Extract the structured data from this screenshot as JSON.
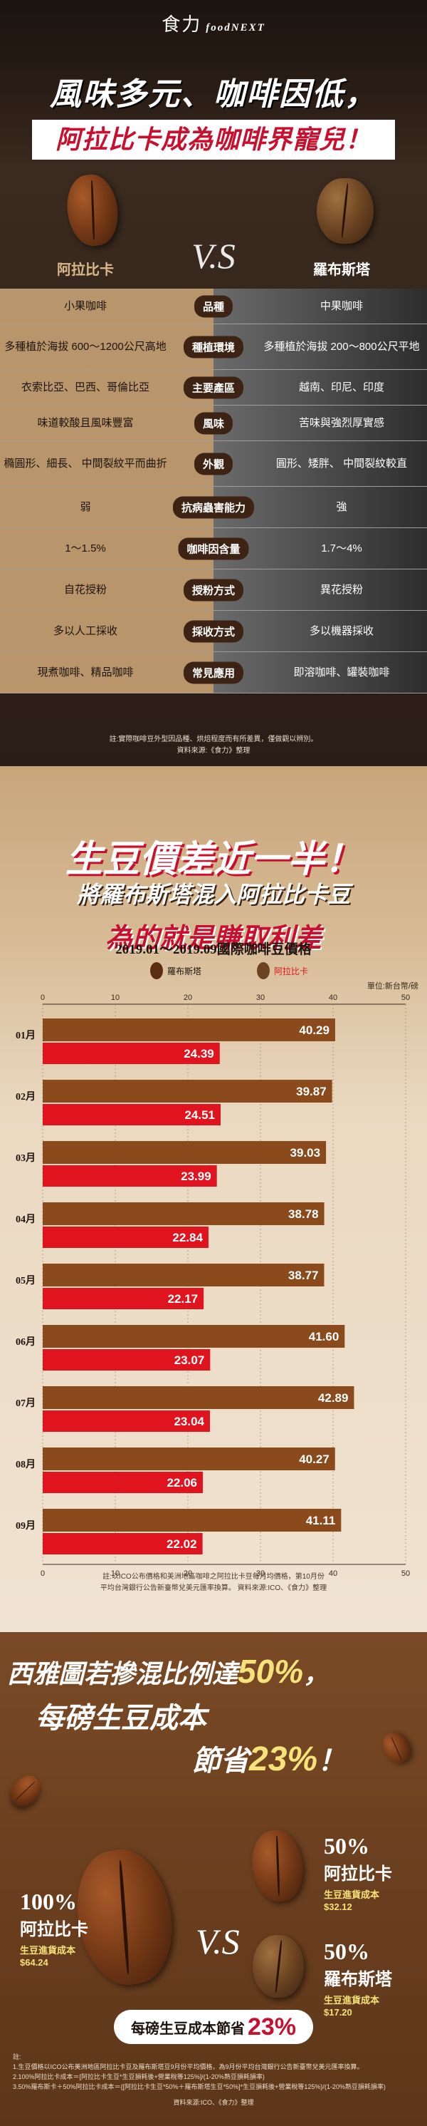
{
  "brand": {
    "name": "食力",
    "sub": "foodNEXT"
  },
  "hero": {
    "title": "風味多元、咖啡因低，",
    "subtitle": "阿拉比卡成為咖啡界寵兒！"
  },
  "compare": {
    "left_head": "阿拉比卡",
    "right_head": "羅布斯塔",
    "vs": "V.S",
    "rows": [
      {
        "label": "品種",
        "left": "小果咖啡",
        "right": "中果咖啡"
      },
      {
        "label": "種植環境",
        "left": "多種植於海拔 600～1200公尺高地",
        "right": "多種植於海拔 200～800公尺平地"
      },
      {
        "label": "主要產區",
        "left": "衣索比亞、巴西、哥倫比亞",
        "right": "越南、印尼、印度"
      },
      {
        "label": "風味",
        "left": "味道較酸且風味豐富",
        "right": "苦味與強烈厚實感"
      },
      {
        "label": "外觀",
        "left": "橢圓形、細長、 中間裂紋平而曲折",
        "right": "圓形、矮胖、 中間裂紋較直"
      },
      {
        "label": "抗病蟲害能力",
        "left": "弱",
        "right": "強"
      },
      {
        "label": "咖啡因含量",
        "left": "1～1.5%",
        "right": "1.7～4%"
      },
      {
        "label": "授粉方式",
        "left": "自花授粉",
        "right": "異花授粉"
      },
      {
        "label": "採收方式",
        "left": "多以人工採收",
        "right": "多以機器採收"
      },
      {
        "label": "常見應用",
        "left": "現煮咖啡、精品咖啡",
        "right": "即溶咖啡、罐裝咖啡"
      }
    ],
    "note": "註:實際咖啡豆外型因品種、烘焙程度而有所差異，僅做觀以辨別。 資料來源:《食力》整理"
  },
  "price": {
    "title1": "生豆價差近一半！",
    "title2": "將羅布斯塔混入阿拉比卡豆",
    "title3": "為的就是賺取利差",
    "note": "註:以ICO公布價格和美洲地區咖啡之阿拉比卡豆每月均價格，第10月份平均台灣銀行公告新臺幣兌美元匯率換算。 資料來源:ICO、《食力》整理"
  },
  "chart_data": {
    "type": "bar",
    "title": "2019.01～2019.09國際咖啡豆價格",
    "unit": "單位:新台幣/磅",
    "categories": [
      "01月",
      "02月",
      "03月",
      "04月",
      "05月",
      "06月",
      "07月",
      "08月",
      "09月"
    ],
    "series": [
      {
        "name": "阿拉比卡",
        "color": "#8a4a1c",
        "values": [
          40.29,
          39.87,
          39.03,
          38.78,
          38.77,
          41.6,
          42.89,
          40.27,
          41.11
        ]
      },
      {
        "name": "羅布斯塔",
        "color": "#e0141e",
        "values": [
          24.39,
          24.51,
          23.99,
          22.84,
          22.17,
          23.07,
          23.04,
          22.06,
          22.02
        ]
      }
    ],
    "xlim": [
      0,
      50
    ],
    "xticks": [
      0,
      10,
      20,
      30,
      40,
      50
    ],
    "grid": true,
    "legend": "top-center"
  },
  "saving": {
    "line1a": "西雅圖若摻混比例達",
    "line1b": "50%",
    "line1c": "，",
    "line2": "每磅生豆成本",
    "line3a": "節省",
    "line3b": "23%",
    "line3c": "！",
    "full": {
      "pct": "100%",
      "name": "阿拉比卡",
      "label": "生豆進貨成本",
      "value": "$64.24"
    },
    "mix_a": {
      "pct": "50%",
      "name": "阿拉比卡",
      "label": "生豆進貨成本",
      "value": "$32.12"
    },
    "mix_b": {
      "pct": "50%",
      "name": "羅布斯塔",
      "label": "生豆進貨成本",
      "value": "$17.20"
    },
    "vs": "V.S",
    "summary_text": "每磅生豆成本節省",
    "summary_pct": "23%",
    "note_head": "註:",
    "note1": "1.生豆價格以ICO公布美洲地區阿拉比卡豆及羅布斯塔豆9月份平均價格，為9月份平均台灣銀行公告新臺幣兌美元匯率換算。",
    "note2": "2.100%阿拉比卡成本＝[阿拉比卡生豆*生豆損耗後+營業稅等125%]/(1-20%熟豆損耗損率)",
    "note3": "3.50%羅布斯卡＋50%阿拉比卡成本＝{[阿拉比卡生豆*50%＋羅布斯塔生豆*50%]*生豆損耗後+營業稅等125%}/(1-20%熟豆損耗損率)",
    "source": "資料來源:ICO、《食力》整理"
  }
}
